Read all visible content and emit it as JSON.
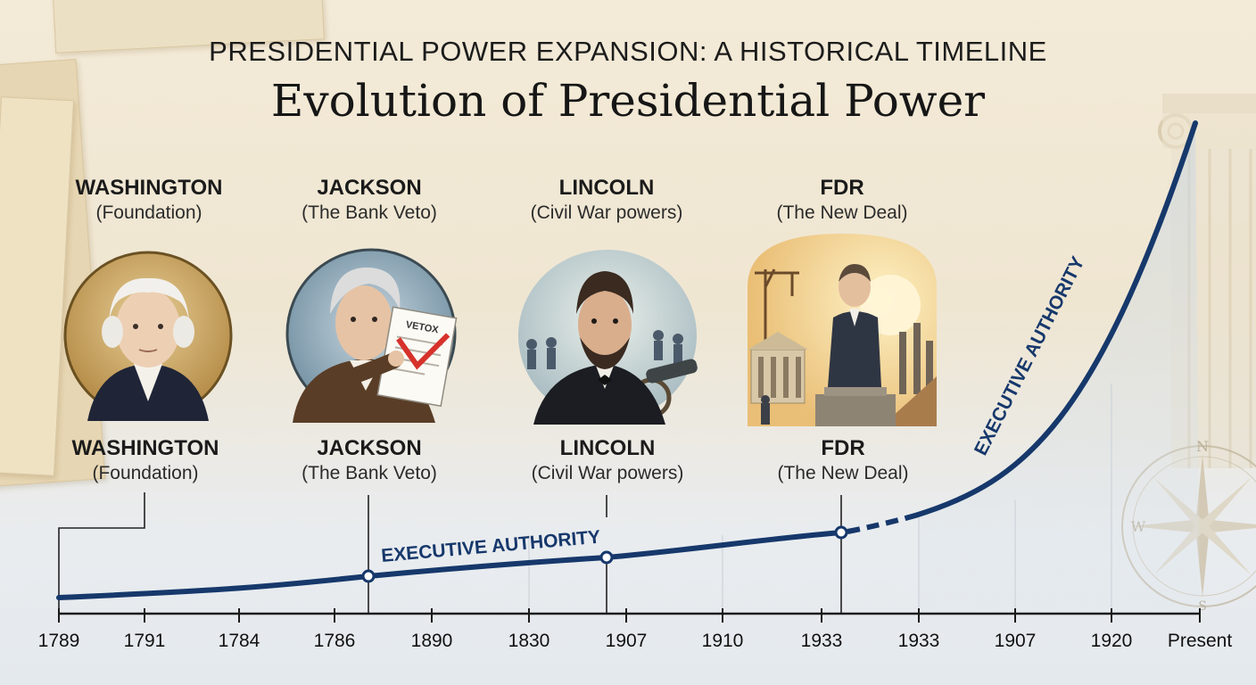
{
  "title": {
    "top": "PRESIDENTIAL POWER EXPANSION: A HISTORICAL TIMELINE",
    "main": "Evolution of Presidential Power"
  },
  "presidents_upper": [
    {
      "name": "WASHINGTON",
      "subtitle": "(Foundation)"
    },
    {
      "name": "JACKSON",
      "subtitle": "(The Bank Veto)"
    },
    {
      "name": "LINCOLN",
      "subtitle": "(Civil War powers)"
    },
    {
      "name": "FDR",
      "subtitle": "(The New Deal)"
    }
  ],
  "presidents_lower": [
    {
      "name": "WASHINGTON",
      "subtitle": "(Foundation)"
    },
    {
      "name": "JACKSON",
      "subtitle": "(The Bank Veto)"
    },
    {
      "name": "LINCOLN",
      "subtitle": "(Civil War powers)"
    },
    {
      "name": "FDR",
      "subtitle": "(The New Deal)"
    }
  ],
  "portrait_icons": [
    "washington-portrait-icon",
    "jackson-portrait-icon",
    "lincoln-portrait-icon",
    "fdr-portrait-icon"
  ],
  "veto_document_text": "VETOX",
  "curve": {
    "label_lower": "EXECUTIVE AUTHORITY",
    "label_upper": "EXECUTIVE AUTHORITY"
  },
  "axis": {
    "tick_labels": [
      "1789",
      "1791",
      "1784",
      "1786",
      "1890",
      "1830",
      "1907",
      "1910",
      "1933",
      "1933",
      "1907",
      "1920",
      "Present"
    ]
  },
  "decor": {
    "compass_letters": [
      "N",
      "W",
      "S"
    ]
  },
  "colors": {
    "curve": "#16386b",
    "axis": "#1a1a1a",
    "background": "#f1e8d5",
    "veto_mark": "#d6322b"
  }
}
